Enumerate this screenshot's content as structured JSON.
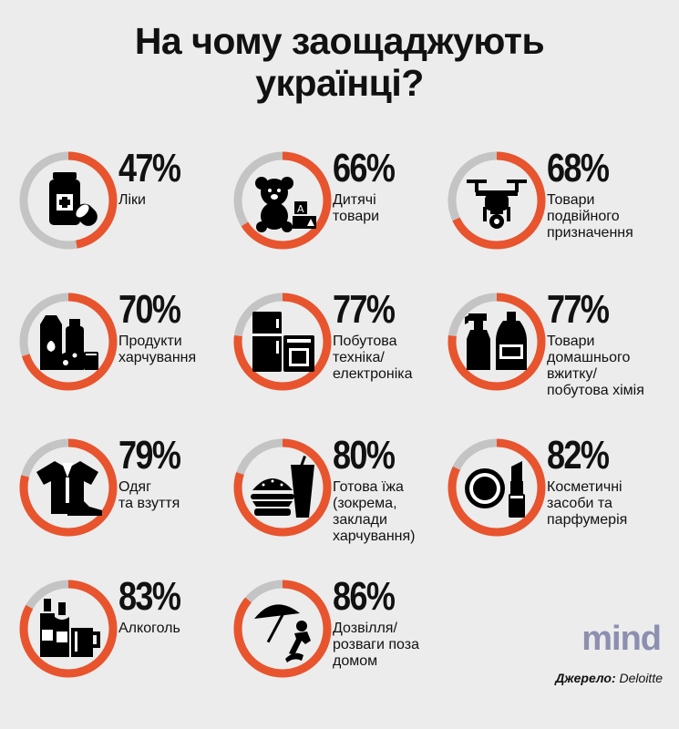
{
  "title_line1": "На чому заощаджують",
  "title_line2": "українці?",
  "colors": {
    "accent": "#e8542d",
    "track": "#c4c4c4",
    "background": "#ececec"
  },
  "chart_data": {
    "type": "pie",
    "title": "На чому заощаджують українці?",
    "categories": [
      "Ліки",
      "Дитячі товари",
      "Товари подвійного призначення",
      "Продукти харчування",
      "Побутова техніка/електроніка",
      "Товари домашнього вжитку/побутова хімія",
      "Одяг та взуття",
      "Готова їжа (зокрема, заклади харчування)",
      "Косметичні засоби та парфумерія",
      "Алкоголь",
      "Дозвілля/розваги поза домом"
    ],
    "values": [
      47,
      66,
      68,
      70,
      77,
      77,
      79,
      80,
      82,
      83,
      86
    ],
    "unit": "%",
    "items": [
      {
        "pct": "47%",
        "label": "Ліки",
        "value": 47,
        "icon": "pills-icon"
      },
      {
        "pct": "66%",
        "label": "Дитячі\nтовари",
        "value": 66,
        "icon": "teddy-bear-icon"
      },
      {
        "pct": "68%",
        "label": "Товари\nподвійного\nпризначення",
        "value": 68,
        "icon": "drone-icon"
      },
      {
        "pct": "70%",
        "label": "Продукти\nхарчування",
        "value": 70,
        "icon": "groceries-icon"
      },
      {
        "pct": "77%",
        "label": "Побутова\nтехніка/\nелектроніка",
        "value": 77,
        "icon": "appliances-icon"
      },
      {
        "pct": "77%",
        "label": "Товари\nдомашнього\nвжитку/\nпобутова хімія",
        "value": 77,
        "icon": "cleaning-bottles-icon"
      },
      {
        "pct": "79%",
        "label": "Одяг\nта взуття",
        "value": 79,
        "icon": "clothes-icon"
      },
      {
        "pct": "80%",
        "label": "Готова їжа\n(зокрема,\nзаклади\nхарчування)",
        "value": 80,
        "icon": "fast-food-icon"
      },
      {
        "pct": "82%",
        "label": "Косметичні\nзасоби та\nпарфумерія",
        "value": 82,
        "icon": "cosmetics-icon"
      },
      {
        "pct": "83%",
        "label": "Алкоголь",
        "value": 83,
        "icon": "bottles-icon"
      },
      {
        "pct": "86%",
        "label": "Дозвілля/\nрозваги поза\nдомом",
        "value": 86,
        "icon": "beach-umbrella-icon"
      }
    ]
  },
  "logo": "mind",
  "source_label": "Джерело:",
  "source_value": "Deloitte"
}
